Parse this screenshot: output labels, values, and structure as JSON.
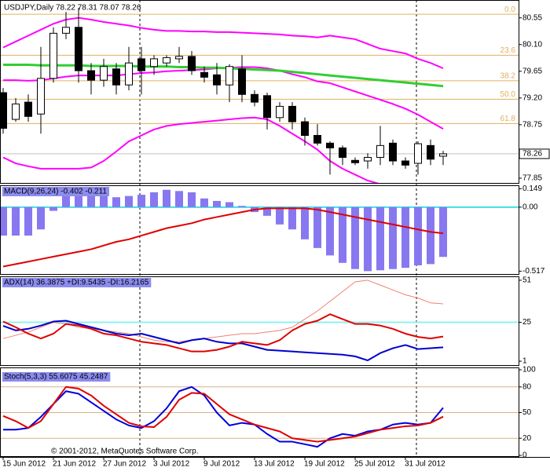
{
  "chart_data": [
    {
      "type": "candlestick",
      "title": "USDJPY,Daily 78.22 78.31 78.07 78.26",
      "categories": [
        "15 Jun 2012",
        null,
        null,
        null,
        "21 Jun 2012",
        null,
        null,
        null,
        "27 Jun 2012",
        null,
        null,
        null,
        "3 Jul 2012",
        null,
        null,
        null,
        "9 Jul 2012",
        null,
        null,
        null,
        "13 Jul 2012",
        null,
        null,
        null,
        "19 Jul 2012",
        null,
        null,
        null,
        "25 Jul 2012",
        null,
        null,
        null,
        "31 Jul 2012",
        null,
        null,
        null
      ],
      "open": [
        79.29,
        78.84,
        79.13,
        78.93,
        79.53,
        80.29,
        80.39,
        79.66,
        79.5,
        79.69,
        79.42,
        79.86,
        79.73,
        79.79,
        79.86,
        79.9,
        79.63,
        79.59,
        79.42,
        79.69,
        79.26,
        79.24,
        78.87,
        79.06,
        78.8,
        78.57,
        78.44,
        78.36,
        78.15,
        78.14,
        78.2,
        78.44,
        78.14,
        78.1,
        78.4,
        78.22
      ],
      "high": [
        79.37,
        79.2,
        79.26,
        80.06,
        80.39,
        80.65,
        80.72,
        79.79,
        79.86,
        79.79,
        80.06,
        80.06,
        79.92,
        79.92,
        80.06,
        79.99,
        79.73,
        79.79,
        79.77,
        79.92,
        79.33,
        79.29,
        79.13,
        79.13,
        78.87,
        78.76,
        78.47,
        78.4,
        78.2,
        78.27,
        78.73,
        78.5,
        78.2,
        78.47,
        78.5,
        78.31
      ],
      "low": [
        78.6,
        78.8,
        78.8,
        78.6,
        79.46,
        80.19,
        79.46,
        79.26,
        79.39,
        79.26,
        79.33,
        79.26,
        79.59,
        79.73,
        79.79,
        79.59,
        79.46,
        79.26,
        79.13,
        79.13,
        79.06,
        78.67,
        78.8,
        78.67,
        78.4,
        78.4,
        77.91,
        78.07,
        78.07,
        78.01,
        78.07,
        78.07,
        78.01,
        77.91,
        78.07,
        78.07
      ],
      "close": [
        78.69,
        79.1,
        78.89,
        79.53,
        80.29,
        80.39,
        79.66,
        79.5,
        79.73,
        79.42,
        79.79,
        79.66,
        79.86,
        79.88,
        79.9,
        79.66,
        79.55,
        79.42,
        79.73,
        79.26,
        79.13,
        78.87,
        79.06,
        78.8,
        78.57,
        78.44,
        78.36,
        78.2,
        78.11,
        78.2,
        78.4,
        78.14,
        78.07,
        78.43,
        78.17,
        78.26
      ],
      "up_color": "#ffffff",
      "down_color": "#000000",
      "lines": [
        {
          "color": "#ff00ff",
          "width": 2,
          "values": [
            80.05,
            80.15,
            80.25,
            80.35,
            80.45,
            80.52,
            80.55,
            80.52,
            80.48,
            80.45,
            80.42,
            80.38,
            80.35,
            80.33,
            80.33,
            80.32,
            80.32,
            80.31,
            80.31,
            80.3,
            80.29,
            80.28,
            80.27,
            80.25,
            80.24,
            80.22,
            80.25,
            80.22,
            80.19,
            80.11,
            80.03,
            79.99,
            79.95,
            79.86,
            79.79,
            79.7
          ]
        },
        {
          "color": "#ff00ff",
          "width": 2,
          "values": [
            79.5,
            79.5,
            79.49,
            79.5,
            79.53,
            79.56,
            79.58,
            79.58,
            79.58,
            79.58,
            79.6,
            79.62,
            79.63,
            79.65,
            79.66,
            79.67,
            79.68,
            79.7,
            79.71,
            79.72,
            79.72,
            79.7,
            79.66,
            79.6,
            79.55,
            79.48,
            79.45,
            79.38,
            79.31,
            79.24,
            79.17,
            79.1,
            79.02,
            78.92,
            78.8,
            78.68
          ]
        },
        {
          "color": "#ff00ff",
          "width": 2,
          "values": [
            78.2,
            78.1,
            78.05,
            78.01,
            78.01,
            78.01,
            78.01,
            78.03,
            78.14,
            78.3,
            78.47,
            78.57,
            78.67,
            78.73,
            78.76,
            78.78,
            78.8,
            78.82,
            78.84,
            78.86,
            78.87,
            78.84,
            78.73,
            78.6,
            78.47,
            78.33,
            78.14,
            78.01,
            77.91,
            77.81,
            77.75,
            77.72,
            77.7,
            77.7,
            77.7,
            77.72
          ]
        },
        {
          "color": "#32cd32",
          "width": 3,
          "values": [
            79.76,
            79.76,
            79.76,
            79.75,
            79.75,
            79.75,
            79.75,
            79.74,
            79.74,
            79.74,
            79.74,
            79.73,
            79.73,
            79.73,
            79.72,
            79.72,
            79.71,
            79.71,
            79.7,
            79.69,
            79.68,
            79.67,
            79.66,
            79.64,
            79.62,
            79.6,
            79.58,
            79.56,
            79.54,
            79.52,
            79.5,
            79.48,
            79.46,
            79.44,
            79.42,
            79.4
          ]
        }
      ],
      "fib_color": "#e0b060",
      "fib_levels": [
        {
          "label": "0.0",
          "value": 80.61
        },
        {
          "label": "23.6",
          "value": 79.92
        },
        {
          "label": "38.2",
          "value": 79.49
        },
        {
          "label": "50.0",
          "value": 79.18
        },
        {
          "label": "61.8",
          "value": 78.77
        }
      ],
      "current_price": 78.26,
      "ylim": [
        77.77,
        80.85
      ],
      "yticks": [
        80.55,
        {
          "value": 80.1,
          "label": "80.10"
        },
        79.65,
        {
          "value": 79.2,
          "label": "79.20"
        },
        78.75,
        77.85
      ]
    },
    {
      "type": "bar",
      "title": "MACD(9,26,24) -0.402 -0.211",
      "title_bg": "#8c8cf0",
      "bar_color": "#8878f0",
      "values": [
        -0.23,
        -0.23,
        -0.23,
        -0.18,
        -0.03,
        0.09,
        0.1,
        0.1,
        0.09,
        0.08,
        0.09,
        0.1,
        0.12,
        0.14,
        0.13,
        0.12,
        0.07,
        0.05,
        0.04,
        0.01,
        -0.04,
        -0.07,
        -0.14,
        -0.18,
        -0.26,
        -0.33,
        -0.39,
        -0.45,
        -0.5,
        -0.517,
        -0.51,
        -0.5,
        -0.49,
        -0.47,
        -0.46,
        -0.402
      ],
      "lines": [
        {
          "color": "#e00000",
          "width": 2,
          "values": [
            -0.48,
            -0.46,
            -0.44,
            -0.42,
            -0.4,
            -0.38,
            -0.36,
            -0.34,
            -0.31,
            -0.28,
            -0.26,
            -0.23,
            -0.2,
            -0.17,
            -0.15,
            -0.13,
            -0.1,
            -0.08,
            -0.06,
            -0.04,
            -0.02,
            -0.01,
            -0.01,
            -0.01,
            -0.01,
            -0.02,
            -0.04,
            -0.06,
            -0.08,
            -0.1,
            -0.12,
            -0.14,
            -0.16,
            -0.18,
            -0.2,
            -0.211
          ]
        }
      ],
      "levels": [
        0
      ],
      "level_color": "#40e0e0",
      "level_width": 2,
      "ylim": [
        -0.54,
        0.17
      ],
      "yticks": [
        0.149,
        {
          "value": 0,
          "label": "0.00"
        },
        -0.517
      ]
    },
    {
      "type": "line",
      "title": "ADX(14) 36.3875 +DI:9.5435 -DI:16.2165",
      "title_bg": "#8c8cf0",
      "lines": [
        {
          "color": "#f08070",
          "width": 1,
          "values": [
            15,
            17,
            19,
            22,
            25,
            24,
            22,
            21,
            20,
            19,
            18,
            16,
            14,
            13,
            13,
            14,
            15,
            16,
            17,
            18,
            18,
            19,
            20,
            22,
            27,
            32,
            38,
            44,
            50,
            51,
            48,
            45,
            42,
            40,
            37,
            36.3875
          ]
        },
        {
          "color": "#0000cc",
          "width": 2,
          "values": [
            22.8,
            20,
            21,
            23,
            25.5,
            26,
            24,
            22,
            20,
            18,
            17,
            18,
            16,
            14,
            12,
            14,
            15,
            13,
            12,
            12,
            10,
            8,
            7.5,
            7,
            6.5,
            6,
            5.5,
            5,
            4,
            1.5,
            6,
            9,
            11,
            8.5,
            9,
            9.5435
          ]
        },
        {
          "color": "#e00000",
          "width": 2,
          "values": [
            25.5,
            22,
            18,
            15,
            18,
            24,
            23,
            21,
            18,
            17,
            15,
            13,
            12,
            11,
            9,
            7,
            7,
            8,
            10,
            13,
            12,
            11,
            14,
            20,
            24,
            26,
            30,
            27,
            24,
            24,
            23,
            21,
            18,
            16,
            15,
            16.2165
          ]
        }
      ],
      "levels": [
        25
      ],
      "level_color": "#90f0f0",
      "level_width": 2,
      "ylim": [
        -1.4,
        52.9
      ],
      "yticks": [
        51,
        25,
        1
      ]
    },
    {
      "type": "line",
      "title": "Stoch(5,3,3) 55.6075 45.2487",
      "title_bg": "#8c8cf0",
      "lines": [
        {
          "color": "#0000dd",
          "width": 2,
          "values": [
            30,
            30,
            32,
            45,
            60,
            75,
            72,
            62,
            52,
            42,
            35,
            32,
            40,
            55,
            75,
            80,
            70,
            50,
            35,
            38,
            36,
            25,
            16,
            16,
            13,
            10,
            20,
            25,
            23,
            28,
            30,
            36,
            38,
            36,
            38,
            55.6075
          ]
        },
        {
          "color": "#e00000",
          "width": 2,
          "values": [
            46,
            40,
            32,
            40,
            60,
            80,
            78,
            70,
            58,
            48,
            38,
            34,
            33,
            45,
            65,
            73,
            72,
            60,
            48,
            42,
            36,
            32,
            28,
            20,
            18,
            16,
            18,
            20,
            22,
            26,
            30,
            32,
            34,
            35,
            38,
            45.2487
          ]
        }
      ],
      "levels": [
        80,
        50,
        20
      ],
      "level_color": "#d8b088",
      "level_width": 1,
      "ylim": [
        0,
        100
      ],
      "yticks": [
        100,
        80,
        50,
        20,
        0
      ]
    }
  ],
  "copyright": "© 2001-2012, MetaQuotes Software Corp."
}
